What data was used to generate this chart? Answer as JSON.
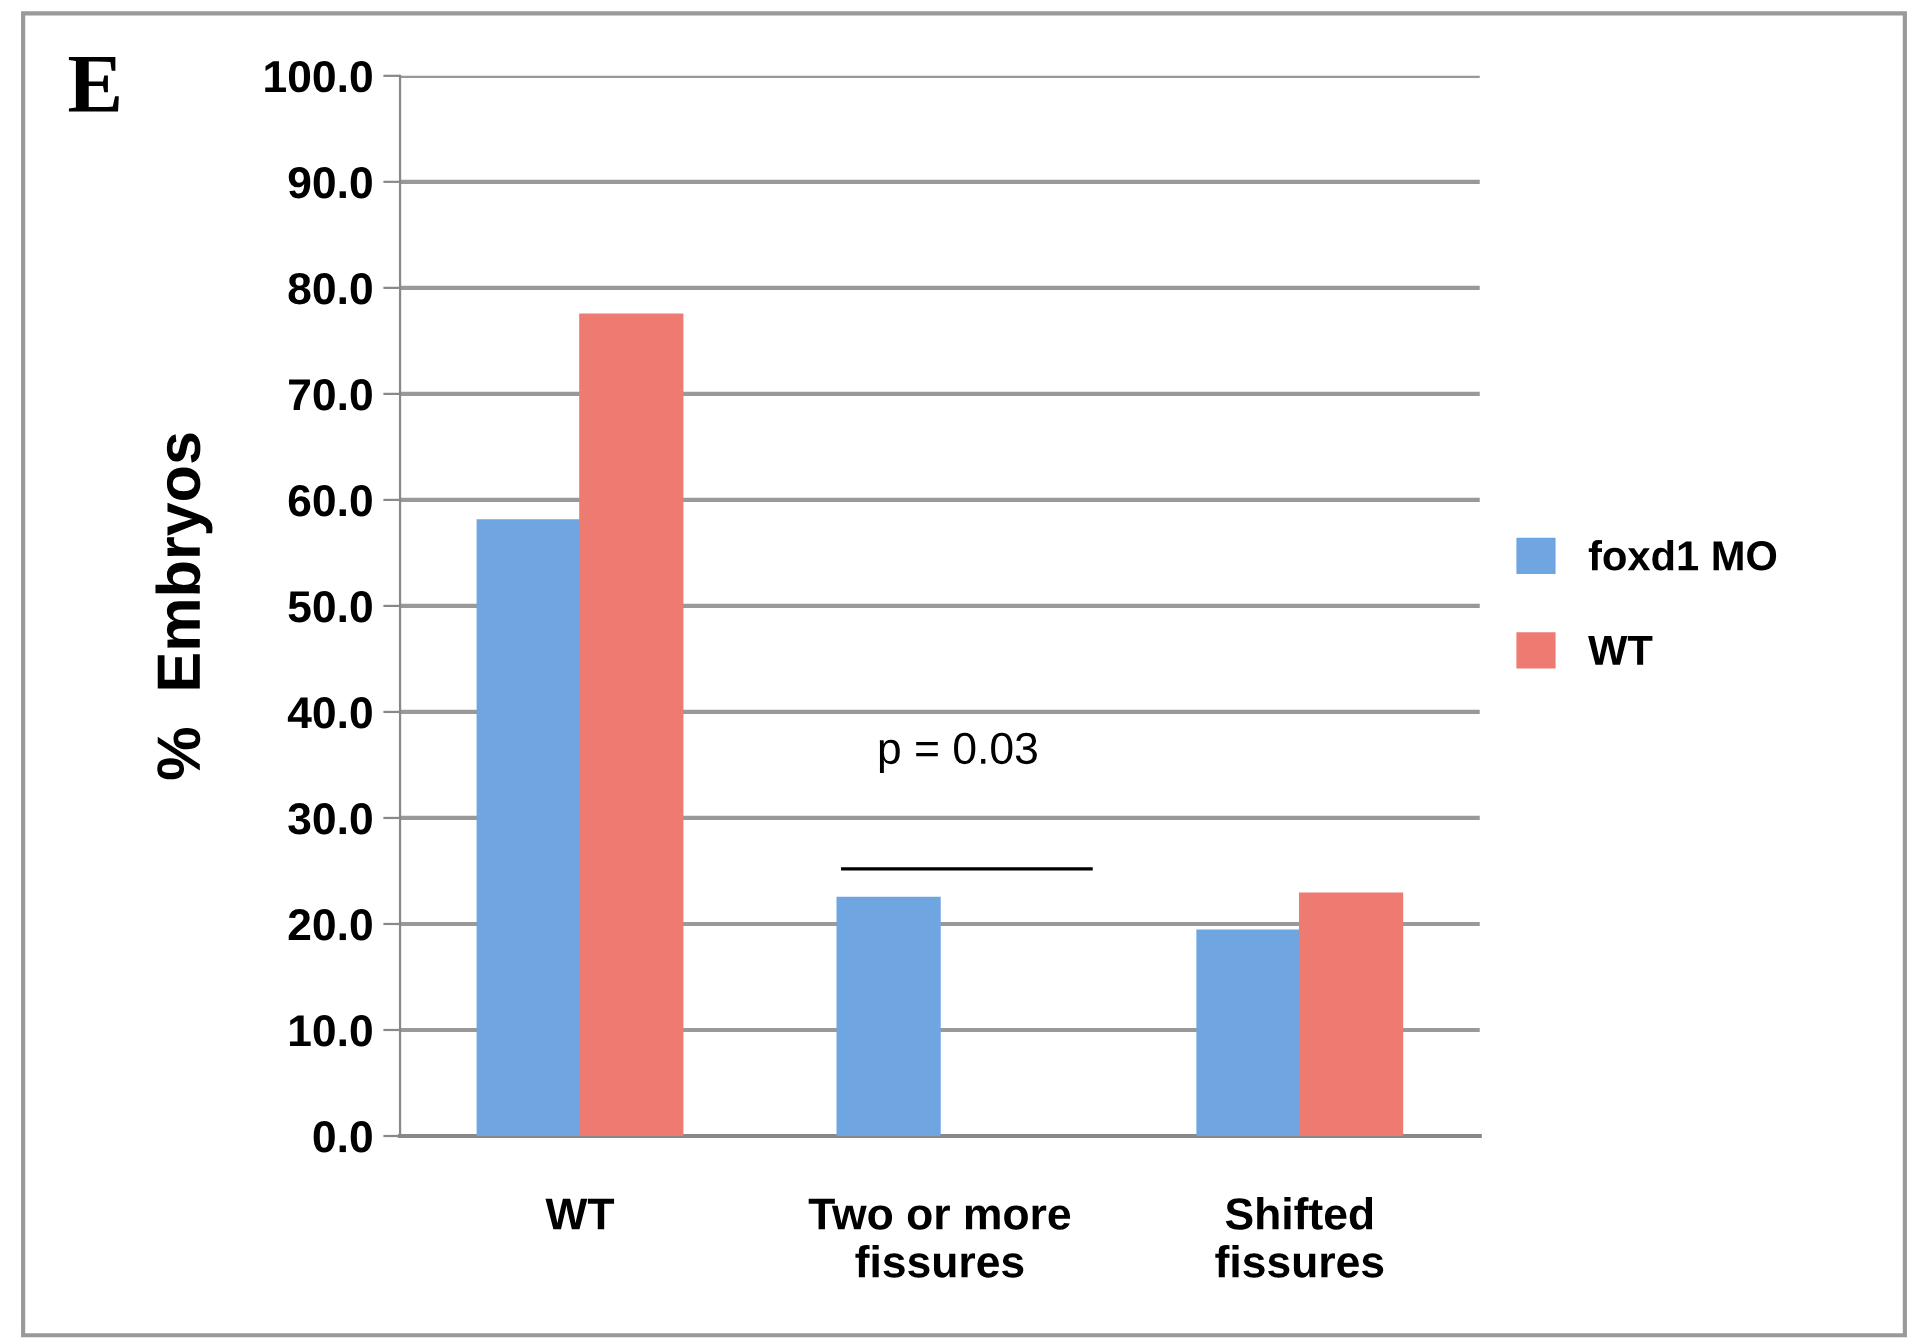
{
  "chart_data": {
    "type": "bar",
    "categories": [
      "WT",
      "Two or more\nfissures",
      "Shifted\nfissures"
    ],
    "series": [
      {
        "name": "foxd1 MO",
        "color": "#6fa5e0",
        "values": [
          58.1,
          22.5,
          19.4
        ]
      },
      {
        "name": "WT",
        "color": "#ee7b72",
        "values": [
          77.5,
          null,
          22.9
        ]
      }
    ],
    "ylabel": "%  Embryos",
    "ylim": [
      0,
      100
    ],
    "yticks": [
      {
        "value": 0,
        "label": "0.0"
      },
      {
        "value": 10,
        "label": "10.0"
      },
      {
        "value": 20,
        "label": "20.0"
      },
      {
        "value": 30,
        "label": "30.0"
      },
      {
        "value": 40,
        "label": "40.0"
      },
      {
        "value": 50,
        "label": "50.0"
      },
      {
        "value": 60,
        "label": "60.0"
      },
      {
        "value": 70,
        "label": "70.0"
      },
      {
        "value": 80,
        "label": "80.0"
      },
      {
        "value": 90,
        "label": "90.0"
      },
      {
        "value": 100,
        "label": "100.0"
      }
    ],
    "grid": "y",
    "legend": "right",
    "annotations": [
      "E",
      "p = 0.03"
    ]
  }
}
